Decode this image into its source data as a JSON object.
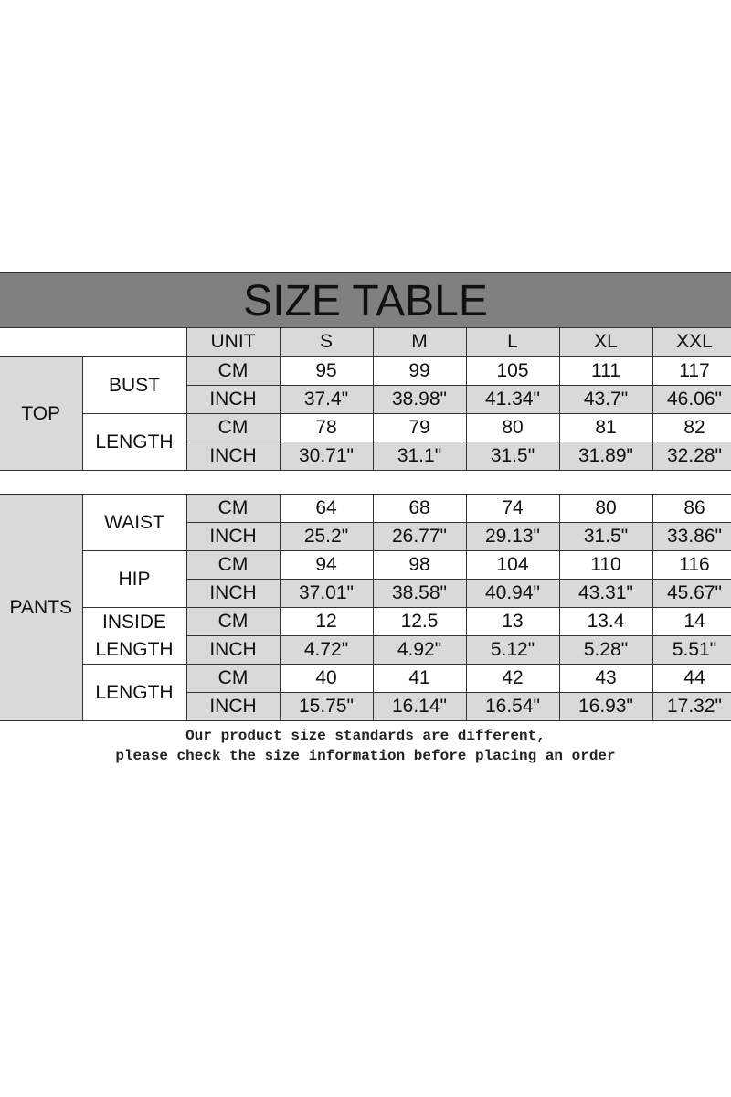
{
  "title": "SIZE TABLE",
  "header": {
    "unit": "UNIT",
    "sizes": [
      "S",
      "M",
      "L",
      "XL",
      "XXL"
    ]
  },
  "sections": [
    {
      "category": "TOP",
      "measurements": [
        {
          "name": "BUST",
          "cm": [
            "95",
            "99",
            "105",
            "111",
            "117"
          ],
          "inch": [
            "37.4\"",
            "38.98\"",
            "41.34\"",
            "43.7\"",
            "46.06\""
          ]
        },
        {
          "name": "LENGTH",
          "cm": [
            "78",
            "79",
            "80",
            "81",
            "82"
          ],
          "inch": [
            "30.71\"",
            "31.1\"",
            "31.5\"",
            "31.89\"",
            "32.28\""
          ]
        }
      ]
    },
    {
      "category": "PANTS",
      "measurements": [
        {
          "name": "WAIST",
          "cm": [
            "64",
            "68",
            "74",
            "80",
            "86"
          ],
          "inch": [
            "25.2\"",
            "26.77\"",
            "29.13\"",
            "31.5\"",
            "33.86\""
          ]
        },
        {
          "name": "HIP",
          "cm": [
            "94",
            "98",
            "104",
            "110",
            "116"
          ],
          "inch": [
            "37.01\"",
            "38.58\"",
            "40.94\"",
            "43.31\"",
            "45.67\""
          ]
        },
        {
          "name": "INSIDE LENGTH",
          "cm": [
            "12",
            "12.5",
            "13",
            "13.4",
            "14"
          ],
          "inch": [
            "4.72\"",
            "4.92\"",
            "5.12\"",
            "5.28\"",
            "5.51\""
          ]
        },
        {
          "name": "LENGTH",
          "cm": [
            "40",
            "41",
            "42",
            "43",
            "44"
          ],
          "inch": [
            "15.75\"",
            "16.14\"",
            "16.54\"",
            "16.93\"",
            "17.32\""
          ]
        }
      ]
    }
  ],
  "units": {
    "cm": "CM",
    "inch": "INCH"
  },
  "note": {
    "line1": "Our product size standards are different,",
    "line2": "please check the size information before placing an order"
  }
}
